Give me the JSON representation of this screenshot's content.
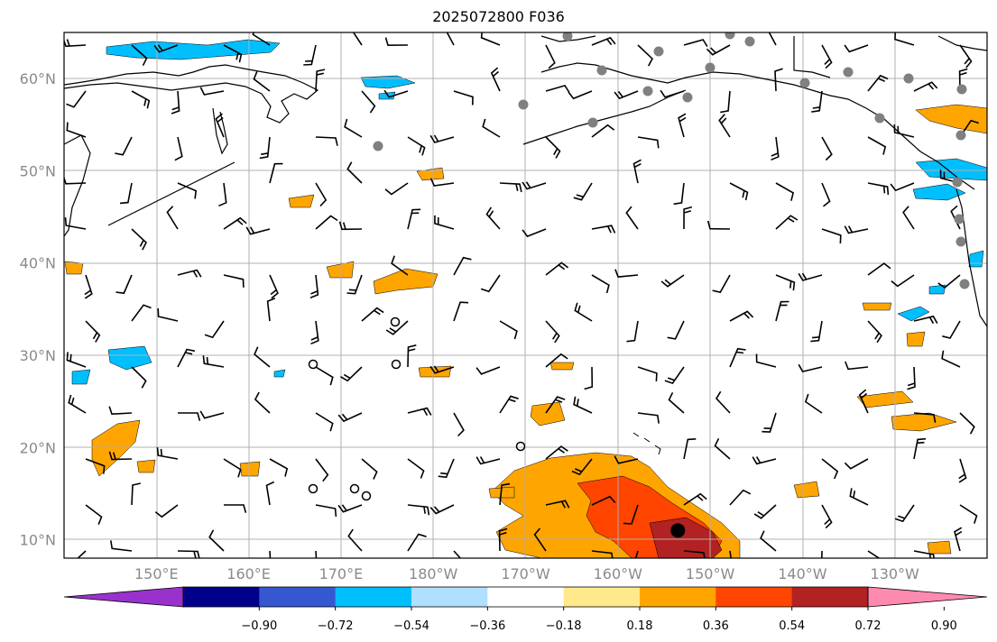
{
  "title": "2025072800 F036",
  "map": {
    "lat_labels": [
      "60°N",
      "50°N",
      "40°N",
      "30°N",
      "20°N",
      "10°N"
    ],
    "lat_values": [
      60,
      50,
      40,
      30,
      20,
      10
    ],
    "lon_labels": [
      "150°E",
      "160°E",
      "170°E",
      "180°W",
      "170°W",
      "160°W",
      "150°W",
      "140°W",
      "130°W"
    ],
    "lon_values": [
      150,
      160,
      170,
      180,
      190,
      200,
      210,
      220,
      230
    ],
    "lon_range": [
      140,
      240
    ],
    "lat_range": [
      8,
      65
    ],
    "gridlines": true,
    "features": [
      "coastlines",
      "wind-barbs",
      "shaded-contours",
      "station-markers"
    ],
    "center_marker": {
      "lon": 206.5,
      "lat": 11
    }
  },
  "colorbar": {
    "labels": [
      "−0.90",
      "−0.72",
      "−0.54",
      "−0.36",
      "−0.18",
      "0.18",
      "0.36",
      "0.54",
      "0.72",
      "0.90"
    ],
    "levels": [
      -0.9,
      -0.72,
      -0.54,
      -0.36,
      -0.18,
      0.18,
      0.36,
      0.54,
      0.72,
      0.9
    ],
    "colors": [
      "#9932cc",
      "#00008b",
      "#3558d1",
      "#00bfff",
      "#b0e0ff",
      "#ffffff",
      "#ffe98a",
      "#ffa500",
      "#ff4500",
      "#b22222",
      "#ff8ab0"
    ]
  }
}
